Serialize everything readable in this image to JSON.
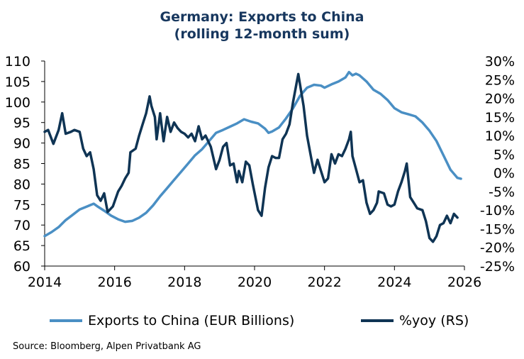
{
  "chart_data": {
    "type": "line",
    "title": "Germany: Exports to China",
    "subtitle": "(rolling 12-month sum)",
    "source": "Source: Bloomberg, Alpen Privatbank AG",
    "x_ticks": [
      "2014",
      "2016",
      "2018",
      "2020",
      "2022",
      "2024",
      "2026"
    ],
    "xlim": [
      2014,
      2026
    ],
    "y_left": {
      "lim": [
        60,
        110
      ],
      "ticks": [
        "60",
        "65",
        "70",
        "75",
        "80",
        "85",
        "90",
        "95",
        "100",
        "105",
        "110"
      ]
    },
    "y_right": {
      "lim": [
        -25,
        30
      ],
      "ticks": [
        "-25%",
        "-20%",
        "-15%",
        "-10%",
        "-5%",
        "0%",
        "5%",
        "10%",
        "15%",
        "20%",
        "25%",
        "30%"
      ]
    },
    "colors": {
      "exports": "#4a8fc4",
      "yoy": "#0f3454"
    },
    "series": [
      {
        "name": "Exports to China (EUR Billions)",
        "axis": "left",
        "points": [
          [
            2014.0,
            67.3
          ],
          [
            2014.2,
            68.3
          ],
          [
            2014.4,
            69.5
          ],
          [
            2014.6,
            71.2
          ],
          [
            2014.8,
            72.5
          ],
          [
            2015.0,
            73.8
          ],
          [
            2015.2,
            74.5
          ],
          [
            2015.4,
            75.2
          ],
          [
            2015.5,
            74.6
          ],
          [
            2015.7,
            73.5
          ],
          [
            2015.9,
            72.3
          ],
          [
            2016.1,
            71.4
          ],
          [
            2016.3,
            70.8
          ],
          [
            2016.5,
            71.0
          ],
          [
            2016.7,
            71.8
          ],
          [
            2016.9,
            73.0
          ],
          [
            2017.1,
            74.8
          ],
          [
            2017.3,
            77.0
          ],
          [
            2017.5,
            79.0
          ],
          [
            2017.7,
            81.0
          ],
          [
            2017.9,
            83.0
          ],
          [
            2018.1,
            85.0
          ],
          [
            2018.3,
            87.0
          ],
          [
            2018.5,
            88.5
          ],
          [
            2018.7,
            90.5
          ],
          [
            2018.9,
            92.5
          ],
          [
            2019.1,
            93.2
          ],
          [
            2019.3,
            94.0
          ],
          [
            2019.5,
            94.8
          ],
          [
            2019.7,
            95.8
          ],
          [
            2019.9,
            95.2
          ],
          [
            2020.1,
            94.8
          ],
          [
            2020.3,
            93.5
          ],
          [
            2020.4,
            92.5
          ],
          [
            2020.5,
            92.8
          ],
          [
            2020.7,
            93.8
          ],
          [
            2020.9,
            96.0
          ],
          [
            2021.1,
            98.5
          ],
          [
            2021.3,
            101.5
          ],
          [
            2021.5,
            103.5
          ],
          [
            2021.7,
            104.2
          ],
          [
            2021.9,
            104.0
          ],
          [
            2022.0,
            103.5
          ],
          [
            2022.2,
            104.3
          ],
          [
            2022.4,
            105.0
          ],
          [
            2022.6,
            106.0
          ],
          [
            2022.7,
            107.3
          ],
          [
            2022.8,
            106.5
          ],
          [
            2022.9,
            106.9
          ],
          [
            2023.0,
            106.5
          ],
          [
            2023.2,
            105.0
          ],
          [
            2023.4,
            103.0
          ],
          [
            2023.6,
            102.0
          ],
          [
            2023.8,
            100.5
          ],
          [
            2024.0,
            98.5
          ],
          [
            2024.2,
            97.5
          ],
          [
            2024.4,
            97.0
          ],
          [
            2024.6,
            96.5
          ],
          [
            2024.8,
            95.0
          ],
          [
            2025.0,
            93.0
          ],
          [
            2025.2,
            90.5
          ],
          [
            2025.4,
            87.0
          ],
          [
            2025.6,
            83.5
          ],
          [
            2025.8,
            81.5
          ],
          [
            2025.9,
            81.3
          ]
        ]
      },
      {
        "name": "%yoy (RS)",
        "axis": "right",
        "points": [
          [
            2014.0,
            11.0
          ],
          [
            2014.1,
            11.5
          ],
          [
            2014.25,
            7.8
          ],
          [
            2014.4,
            11.5
          ],
          [
            2014.5,
            16.0
          ],
          [
            2014.6,
            10.5
          ],
          [
            2014.75,
            11.0
          ],
          [
            2014.85,
            11.5
          ],
          [
            2015.0,
            11.0
          ],
          [
            2015.1,
            6.5
          ],
          [
            2015.2,
            4.5
          ],
          [
            2015.3,
            5.5
          ],
          [
            2015.4,
            1.0
          ],
          [
            2015.5,
            -6.0
          ],
          [
            2015.6,
            -7.5
          ],
          [
            2015.7,
            -5.5
          ],
          [
            2015.8,
            -10.5
          ],
          [
            2015.95,
            -9.0
          ],
          [
            2016.1,
            -5.0
          ],
          [
            2016.2,
            -3.5
          ],
          [
            2016.3,
            -1.5
          ],
          [
            2016.4,
            0.0
          ],
          [
            2016.45,
            5.5
          ],
          [
            2016.6,
            6.5
          ],
          [
            2016.7,
            10.0
          ],
          [
            2016.8,
            13.0
          ],
          [
            2016.9,
            16.0
          ],
          [
            2017.0,
            20.5
          ],
          [
            2017.05,
            18.0
          ],
          [
            2017.15,
            15.0
          ],
          [
            2017.2,
            9.0
          ],
          [
            2017.3,
            16.0
          ],
          [
            2017.4,
            8.5
          ],
          [
            2017.5,
            15.0
          ],
          [
            2017.6,
            11.0
          ],
          [
            2017.7,
            13.5
          ],
          [
            2017.8,
            12.0
          ],
          [
            2017.9,
            11.0
          ],
          [
            2018.0,
            10.5
          ],
          [
            2018.1,
            9.5
          ],
          [
            2018.2,
            10.5
          ],
          [
            2018.3,
            8.5
          ],
          [
            2018.4,
            12.5
          ],
          [
            2018.5,
            9.0
          ],
          [
            2018.6,
            10.0
          ],
          [
            2018.75,
            7.0
          ],
          [
            2018.9,
            1.0
          ],
          [
            2019.0,
            3.5
          ],
          [
            2019.1,
            7.0
          ],
          [
            2019.2,
            8.0
          ],
          [
            2019.3,
            2.0
          ],
          [
            2019.4,
            2.5
          ],
          [
            2019.5,
            -2.5
          ],
          [
            2019.55,
            0.5
          ],
          [
            2019.65,
            -2.5
          ],
          [
            2019.75,
            3.0
          ],
          [
            2019.85,
            2.0
          ],
          [
            2019.95,
            -3.0
          ],
          [
            2020.1,
            -10.0
          ],
          [
            2020.2,
            -11.5
          ],
          [
            2020.3,
            -4.0
          ],
          [
            2020.4,
            1.5
          ],
          [
            2020.5,
            4.5
          ],
          [
            2020.6,
            4.0
          ],
          [
            2020.7,
            4.0
          ],
          [
            2020.8,
            9.0
          ],
          [
            2020.9,
            10.5
          ],
          [
            2021.0,
            13.0
          ],
          [
            2021.1,
            19.0
          ],
          [
            2021.2,
            24.0
          ],
          [
            2021.25,
            26.5
          ],
          [
            2021.4,
            18.0
          ],
          [
            2021.5,
            10.0
          ],
          [
            2021.6,
            5.0
          ],
          [
            2021.7,
            0.0
          ],
          [
            2021.8,
            3.5
          ],
          [
            2021.9,
            0.5
          ],
          [
            2022.0,
            -2.5
          ],
          [
            2022.1,
            -1.5
          ],
          [
            2022.2,
            5.0
          ],
          [
            2022.3,
            2.5
          ],
          [
            2022.4,
            5.0
          ],
          [
            2022.5,
            4.5
          ],
          [
            2022.6,
            6.5
          ],
          [
            2022.7,
            9.0
          ],
          [
            2022.75,
            11.0
          ],
          [
            2022.8,
            4.5
          ],
          [
            2022.9,
            1.0
          ],
          [
            2023.0,
            -2.5
          ],
          [
            2023.1,
            -2.0
          ],
          [
            2023.2,
            -8.0
          ],
          [
            2023.3,
            -11.0
          ],
          [
            2023.4,
            -10.0
          ],
          [
            2023.5,
            -8.0
          ],
          [
            2023.55,
            -5.0
          ],
          [
            2023.7,
            -5.5
          ],
          [
            2023.8,
            -8.5
          ],
          [
            2023.9,
            -9.0
          ],
          [
            2024.0,
            -8.5
          ],
          [
            2024.1,
            -5.0
          ],
          [
            2024.2,
            -2.5
          ],
          [
            2024.3,
            0.5
          ],
          [
            2024.35,
            2.5
          ],
          [
            2024.45,
            -6.5
          ],
          [
            2024.55,
            -8.0
          ],
          [
            2024.65,
            -9.5
          ],
          [
            2024.8,
            -10.0
          ],
          [
            2024.9,
            -13.0
          ],
          [
            2025.0,
            -17.5
          ],
          [
            2025.1,
            -18.5
          ],
          [
            2025.2,
            -17.0
          ],
          [
            2025.3,
            -14.0
          ],
          [
            2025.4,
            -13.5
          ],
          [
            2025.5,
            -11.5
          ],
          [
            2025.6,
            -13.5
          ],
          [
            2025.7,
            -11.0
          ],
          [
            2025.8,
            -12.0
          ]
        ]
      }
    ]
  }
}
